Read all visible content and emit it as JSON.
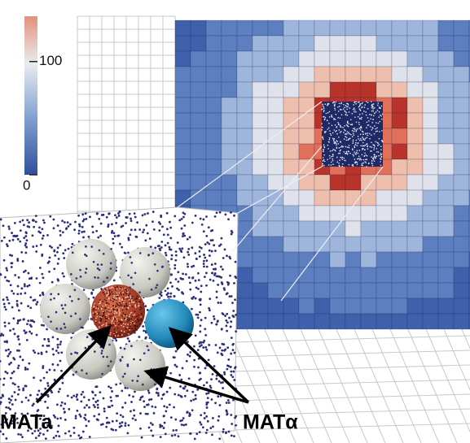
{
  "colorbar": {
    "range": [
      0,
      140
    ],
    "ticks": [
      0,
      100
    ]
  },
  "labels": {
    "left": "MATa",
    "right": "MATα"
  }
}
